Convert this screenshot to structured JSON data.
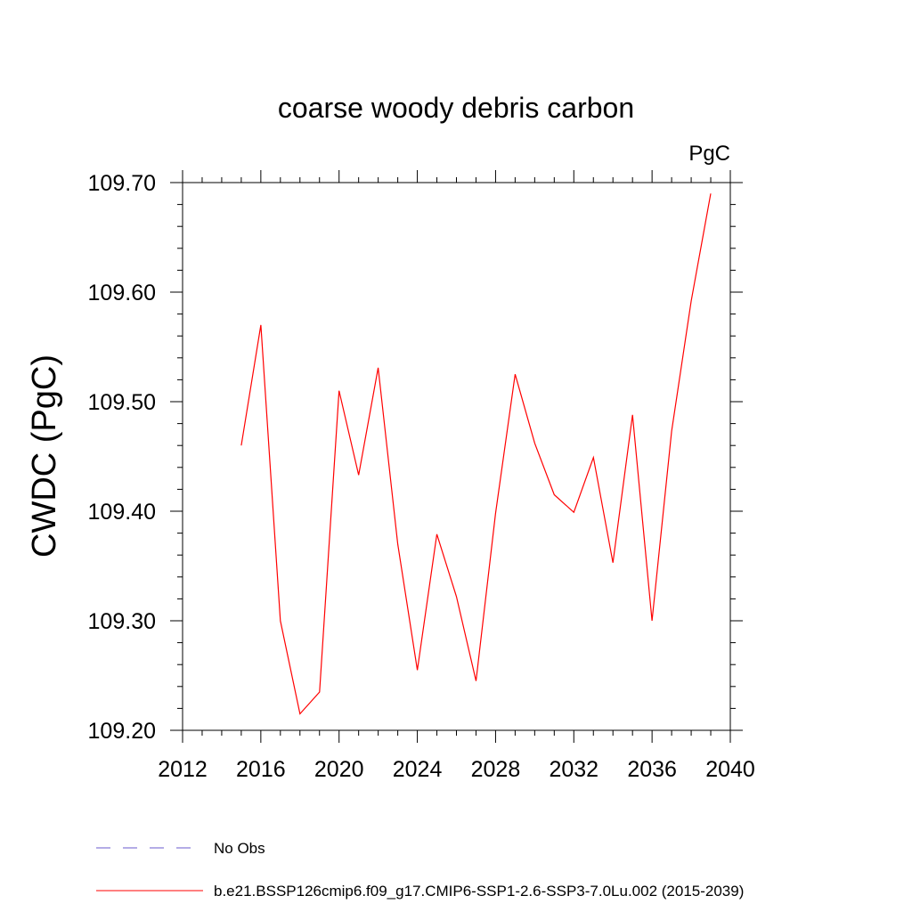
{
  "chart_data": {
    "type": "line",
    "title": "coarse woody debris carbon",
    "units": "PgC",
    "ylabel": "CWDC  (PgC)",
    "xlabel": "",
    "xlim": [
      2012,
      2040
    ],
    "ylim": [
      109.2,
      109.7
    ],
    "x_ticks": [
      2012,
      2016,
      2020,
      2024,
      2028,
      2032,
      2036,
      2040
    ],
    "y_ticks": [
      109.2,
      109.3,
      109.4,
      109.5,
      109.6,
      109.7
    ],
    "x_tick_labels": [
      "2012",
      "2016",
      "2020",
      "2024",
      "2028",
      "2032",
      "2036",
      "2040"
    ],
    "y_tick_labels": [
      "109.20",
      "109.30",
      "109.40",
      "109.50",
      "109.60",
      "109.70"
    ],
    "grid": false,
    "legend_position": "bottom",
    "series": [
      {
        "name": "b.e21.BSSP126cmip6.f09_g17.CMIP6-SSP1-2.6-SSP3-7.0Lu.002 (2015-2039)",
        "color": "#ff0000",
        "line_style": "solid",
        "x": [
          2015,
          2016,
          2017,
          2018,
          2019,
          2020,
          2021,
          2022,
          2023,
          2024,
          2025,
          2026,
          2027,
          2028,
          2029,
          2030,
          2031,
          2032,
          2033,
          2034,
          2035,
          2036,
          2037,
          2038,
          2039
        ],
        "values": [
          109.46,
          109.57,
          109.3,
          109.215,
          109.235,
          109.51,
          109.433,
          109.531,
          109.37,
          109.255,
          109.379,
          109.322,
          109.245,
          109.398,
          109.525,
          109.462,
          109.415,
          109.399,
          109.449,
          109.353,
          109.488,
          109.3,
          109.473,
          109.592,
          109.69
        ]
      }
    ],
    "legend": [
      {
        "label": "No Obs",
        "color": "#6a5acd",
        "line_style": "dashed"
      },
      {
        "label": "b.e21.BSSP126cmip6.f09_g17.CMIP6-SSP1-2.6-SSP3-7.0Lu.002 (2015-2039)",
        "color": "#ff0000",
        "line_style": "solid"
      }
    ]
  }
}
